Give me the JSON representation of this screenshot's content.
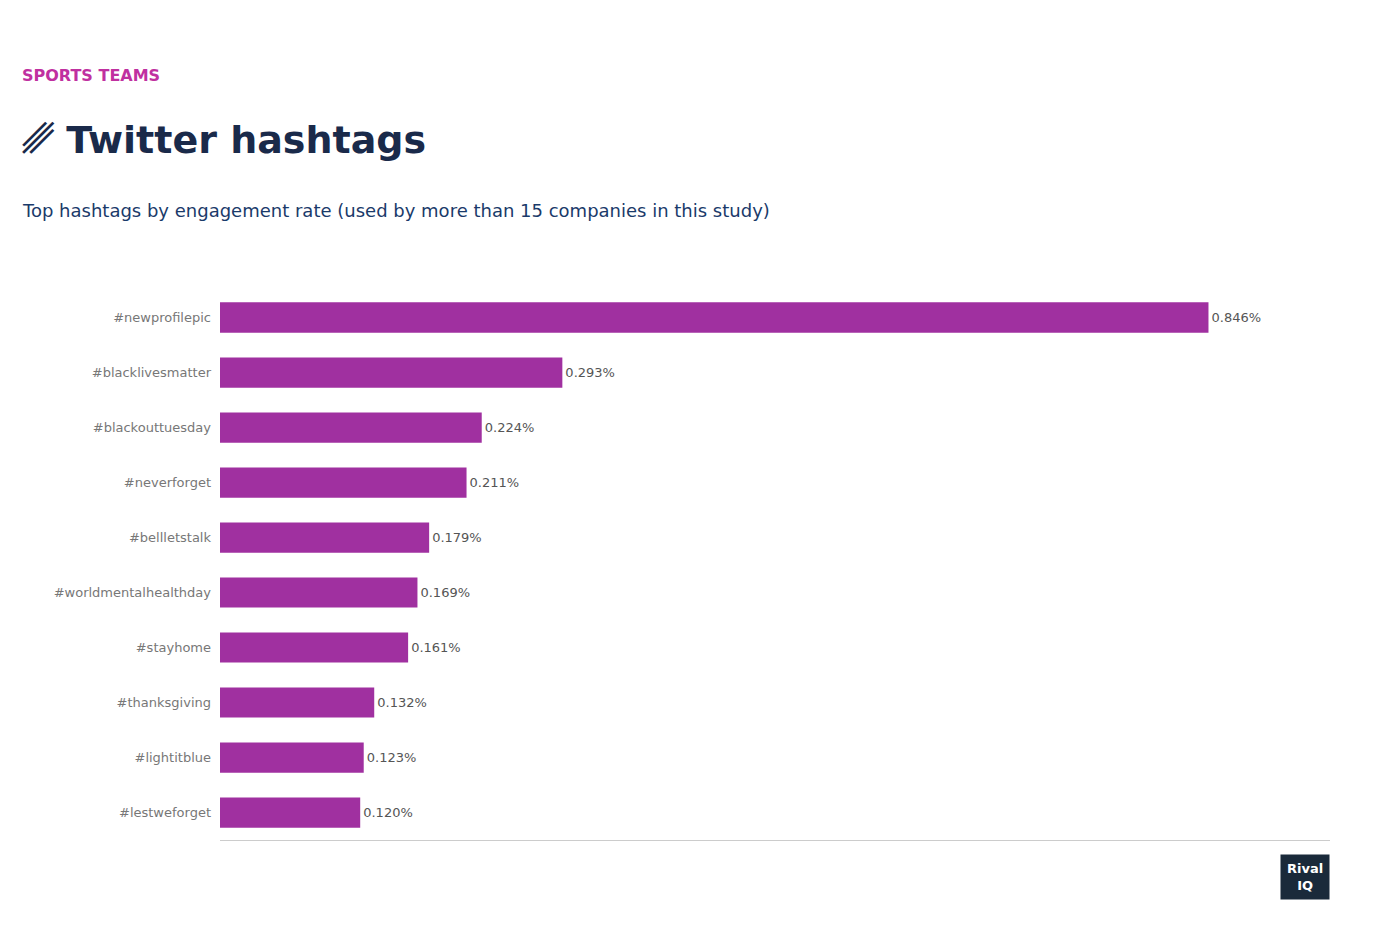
{
  "chart_data": {
    "type": "bar",
    "orientation": "horizontal",
    "title": "␥ Twitter hashtags",
    "subtitle": "Top hashtags by engagement rate (used by more than 15 companies in this study)",
    "annotations": [
      "SPORTS TEAMS",
      "Rival",
      "IQ"
    ],
    "categories": [
      "#newprofilepic",
      "#blacklivesmatter",
      "#blackouttuesday",
      "#neverforget",
      "#bellletstalk",
      "#worldmentalhealthday",
      "#stayhome",
      "#thanksgiving",
      "#lightitblue",
      "#lestweforget"
    ],
    "values": [
      0.846,
      0.293,
      0.224,
      0.211,
      0.179,
      0.169,
      0.161,
      0.132,
      0.123,
      0.12
    ],
    "value_labels": [
      "0.846%",
      "0.293%",
      "0.224%",
      "0.211%",
      "0.179%",
      "0.169%",
      "0.161%",
      "0.132%",
      "0.123%",
      "0.120%"
    ],
    "data_labels": true,
    "color": "#a030a0",
    "xlim": [
      0,
      0.95
    ],
    "grid": false,
    "tick_labels": "y"
  }
}
